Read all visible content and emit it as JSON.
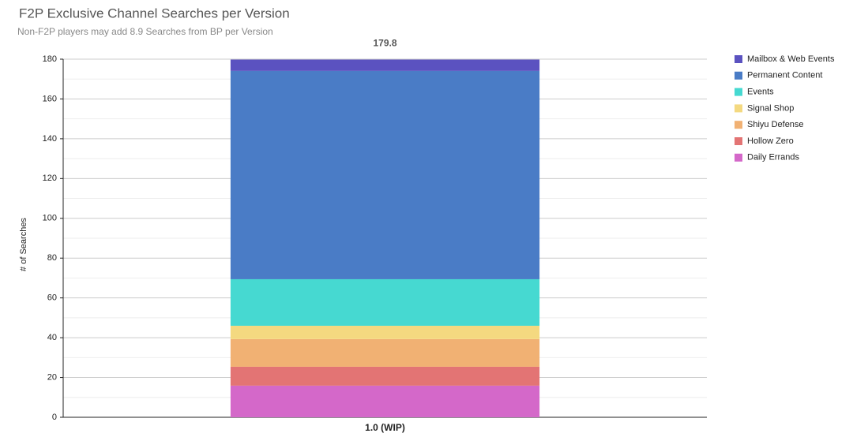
{
  "chart_data": {
    "type": "stacked-bar",
    "title": "F2P Exclusive Channel Searches per Version",
    "subtitle": "Non-F2P players may add 8.9 Searches from BP per Version",
    "y_label": "# of Searches",
    "total": 179.8,
    "categories": [
      "1.0 (WIP)"
    ],
    "series": [
      {
        "name": "Mailbox & Web Events",
        "color": "#5b52c0",
        "values": [
          5.7
        ]
      },
      {
        "name": "Permanent Content",
        "color": "#4a7cc6",
        "values": [
          104.7
        ]
      },
      {
        "name": "Events",
        "color": "#46d9d1",
        "values": [
          23.4
        ]
      },
      {
        "name": "Signal Shop",
        "color": "#f4d980",
        "values": [
          6.7
        ]
      },
      {
        "name": "Shiyu Defense",
        "color": "#f1b173",
        "values": [
          13.9
        ]
      },
      {
        "name": "Hollow Zero",
        "color": "#e37474",
        "values": [
          9.5
        ]
      },
      {
        "name": "Daily Errands",
        "color": "#d468c9",
        "values": [
          15.9
        ]
      }
    ],
    "ylim": [
      0,
      180
    ],
    "yticks": [
      0,
      20,
      40,
      60,
      80,
      100,
      120,
      140,
      160,
      180
    ],
    "minor_yticks": [
      10,
      30,
      50,
      70,
      90,
      110,
      130,
      150,
      170
    ],
    "grid": true
  }
}
